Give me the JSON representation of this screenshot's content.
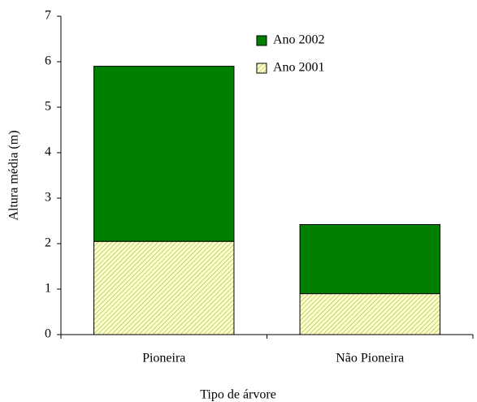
{
  "chart_data": {
    "type": "stacked_bar",
    "x_label": "Tipo de árvore",
    "y_label": "Altura média (m)",
    "categories": [
      "Pioneira",
      "Não Pioneira"
    ],
    "series": [
      {
        "name": "Ano 2001",
        "color": "#ffffcc",
        "values": [
          2.05,
          0.9
        ]
      },
      {
        "name": "Ano 2002",
        "color": "#008000",
        "values": [
          3.85,
          1.52
        ]
      }
    ],
    "ylim": [
      0,
      7
    ],
    "yticks": [
      0,
      1,
      2,
      3,
      4,
      5,
      6,
      7
    ]
  }
}
